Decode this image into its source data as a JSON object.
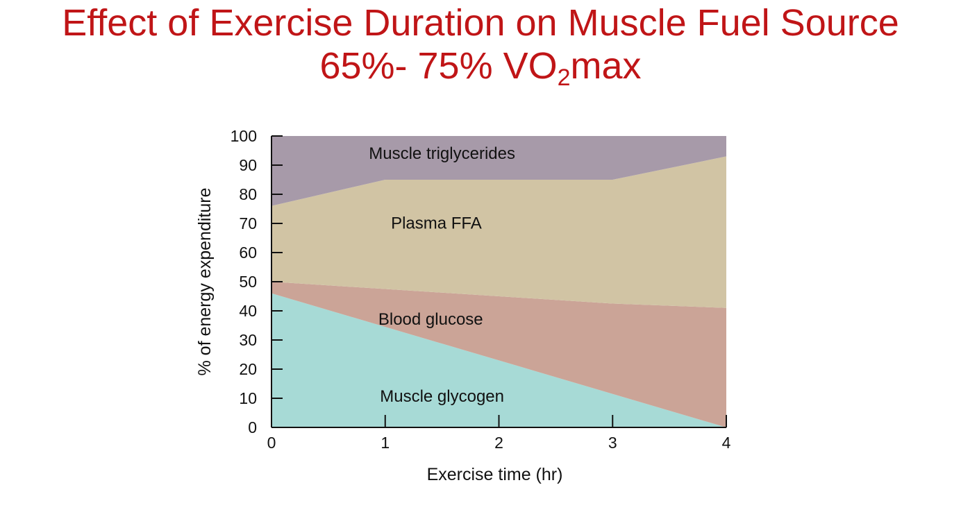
{
  "title": {
    "line1": "Effect of Exercise Duration on Muscle Fuel Source",
    "line2_prefix": "65%- 75% VO",
    "line2_subscript": "2",
    "line2_suffix": "max"
  },
  "chart_data": {
    "type": "area",
    "stacked": true,
    "x": [
      0,
      1,
      2,
      3,
      4
    ],
    "xlabel": "Exercise time (hr)",
    "ylabel": "% of energy expenditure",
    "xlim": [
      0,
      4
    ],
    "ylim": [
      0,
      100
    ],
    "xticks": [
      "0",
      "1",
      "2",
      "3",
      "4"
    ],
    "yticks": [
      "0",
      "10",
      "20",
      "30",
      "40",
      "50",
      "60",
      "70",
      "80",
      "90",
      "100"
    ],
    "grid": false,
    "legend": "none",
    "series": [
      {
        "name": "Muscle glycogen",
        "values": [
          46,
          34.5,
          23,
          11.5,
          0
        ],
        "color": "#a7dad6"
      },
      {
        "name": "Blood glucose",
        "values": [
          4,
          13,
          22,
          31,
          41
        ],
        "color": "#cba497"
      },
      {
        "name": "Plasma FFA",
        "values": [
          26,
          37.5,
          40,
          42.5,
          52
        ],
        "color": "#d1c4a4"
      },
      {
        "name": "Muscle triglycerides",
        "values": [
          24,
          15,
          15,
          15,
          7
        ],
        "color": "#a79aa9"
      }
    ]
  }
}
